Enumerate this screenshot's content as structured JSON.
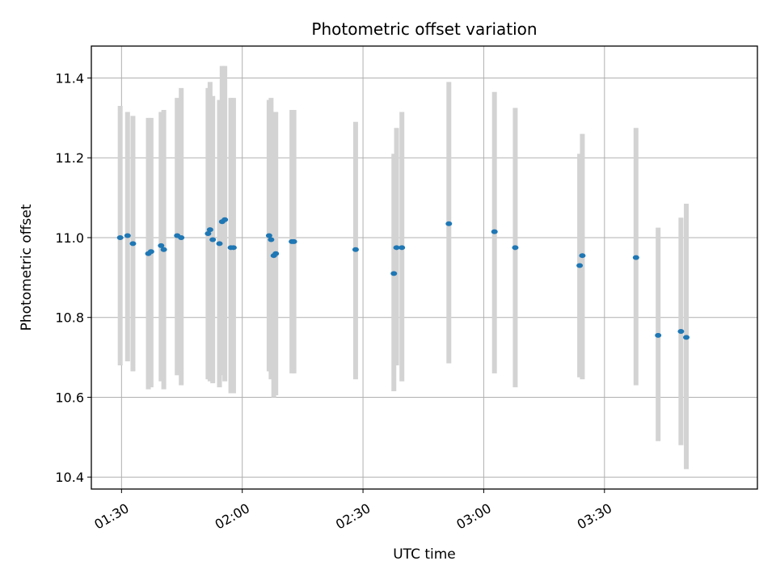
{
  "chart_data": {
    "type": "scatter",
    "title": "Photometric offset variation",
    "xlabel": "UTC time",
    "ylabel": "Photometric offset",
    "x_ticks": [
      "01:30",
      "02:00",
      "02:30",
      "03:00",
      "03:30"
    ],
    "y_ticks": [
      "10.4",
      "10.6",
      "10.8",
      "11.0",
      "11.2",
      "11.4"
    ],
    "xlim": [
      "01:22:30",
      "04:08:00"
    ],
    "ylim": [
      10.37,
      11.48
    ],
    "grid": true,
    "colors": {
      "point": "#1f77b4",
      "errorbar": "#d3d3d3",
      "grid": "#b0b0b0"
    },
    "points": [
      {
        "x": "01:29:40",
        "y": 11.0,
        "ylow": 10.68,
        "yhigh": 11.33
      },
      {
        "x": "01:31:30",
        "y": 11.005,
        "ylow": 10.69,
        "yhigh": 11.315
      },
      {
        "x": "01:32:50",
        "y": 10.985,
        "ylow": 10.665,
        "yhigh": 11.305
      },
      {
        "x": "01:36:40",
        "y": 10.96,
        "ylow": 10.62,
        "yhigh": 11.3
      },
      {
        "x": "01:37:20",
        "y": 10.965,
        "ylow": 10.625,
        "yhigh": 11.3
      },
      {
        "x": "01:39:50",
        "y": 10.98,
        "ylow": 10.64,
        "yhigh": 11.315
      },
      {
        "x": "01:40:30",
        "y": 10.97,
        "ylow": 10.62,
        "yhigh": 11.32
      },
      {
        "x": "01:43:50",
        "y": 11.005,
        "ylow": 10.655,
        "yhigh": 11.35
      },
      {
        "x": "01:44:50",
        "y": 11.0,
        "ylow": 10.63,
        "yhigh": 11.375
      },
      {
        "x": "01:51:30",
        "y": 11.01,
        "ylow": 10.645,
        "yhigh": 11.375
      },
      {
        "x": "01:52:00",
        "y": 11.02,
        "ylow": 10.64,
        "yhigh": 11.39
      },
      {
        "x": "01:52:40",
        "y": 10.995,
        "ylow": 10.635,
        "yhigh": 11.355
      },
      {
        "x": "01:54:20",
        "y": 10.985,
        "ylow": 10.625,
        "yhigh": 11.345
      },
      {
        "x": "01:55:00",
        "y": 11.04,
        "ylow": 10.655,
        "yhigh": 11.43
      },
      {
        "x": "01:55:40",
        "y": 11.045,
        "ylow": 10.64,
        "yhigh": 11.43
      },
      {
        "x": "01:57:10",
        "y": 10.975,
        "ylow": 10.61,
        "yhigh": 11.35
      },
      {
        "x": "01:57:50",
        "y": 10.975,
        "ylow": 10.61,
        "yhigh": 11.35
      },
      {
        "x": "02:06:40",
        "y": 11.005,
        "ylow": 10.665,
        "yhigh": 11.345
      },
      {
        "x": "02:07:10",
        "y": 10.995,
        "ylow": 10.645,
        "yhigh": 11.35
      },
      {
        "x": "02:07:50",
        "y": 10.955,
        "ylow": 10.6,
        "yhigh": 11.315
      },
      {
        "x": "02:08:20",
        "y": 10.96,
        "ylow": 10.605,
        "yhigh": 11.315
      },
      {
        "x": "02:12:20",
        "y": 10.99,
        "ylow": 10.66,
        "yhigh": 11.32
      },
      {
        "x": "02:12:50",
        "y": 10.99,
        "ylow": 10.66,
        "yhigh": 11.32
      },
      {
        "x": "02:28:10",
        "y": 10.97,
        "ylow": 10.645,
        "yhigh": 11.29
      },
      {
        "x": "02:37:40",
        "y": 10.91,
        "ylow": 10.615,
        "yhigh": 11.21
      },
      {
        "x": "02:38:20",
        "y": 10.975,
        "ylow": 10.68,
        "yhigh": 11.275
      },
      {
        "x": "02:39:40",
        "y": 10.975,
        "ylow": 10.64,
        "yhigh": 11.315
      },
      {
        "x": "02:51:20",
        "y": 11.035,
        "ylow": 10.685,
        "yhigh": 11.39
      },
      {
        "x": "03:02:40",
        "y": 11.015,
        "ylow": 10.66,
        "yhigh": 11.365
      },
      {
        "x": "03:07:50",
        "y": 10.975,
        "ylow": 10.625,
        "yhigh": 11.325
      },
      {
        "x": "03:23:50",
        "y": 10.93,
        "ylow": 10.65,
        "yhigh": 11.21
      },
      {
        "x": "03:24:30",
        "y": 10.955,
        "ylow": 10.645,
        "yhigh": 11.26
      },
      {
        "x": "03:37:50",
        "y": 10.95,
        "ylow": 10.63,
        "yhigh": 11.275
      },
      {
        "x": "03:43:20",
        "y": 10.755,
        "ylow": 10.49,
        "yhigh": 11.025
      },
      {
        "x": "03:49:00",
        "y": 10.765,
        "ylow": 10.48,
        "yhigh": 11.05
      },
      {
        "x": "03:50:20",
        "y": 10.75,
        "ylow": 10.42,
        "yhigh": 11.085
      }
    ]
  }
}
